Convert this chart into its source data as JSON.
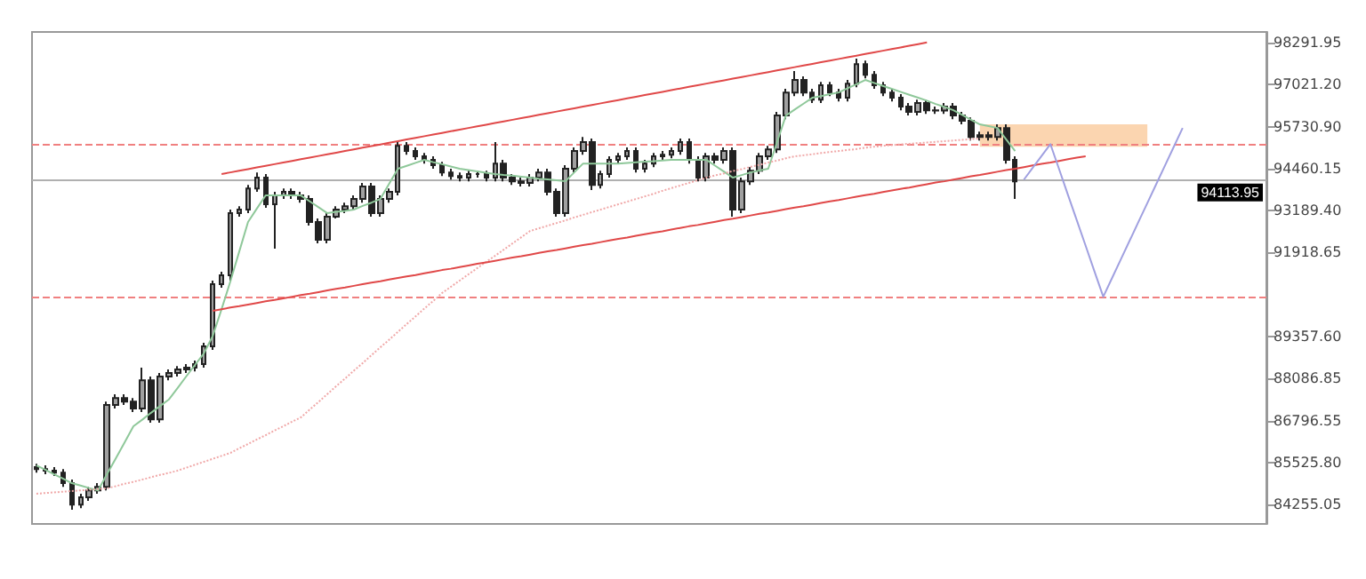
{
  "chart_data": {
    "type": "candlestick",
    "tick_labels": "y",
    "grid": false,
    "ylim": [
      83660,
      98620
    ],
    "yticks": [
      {
        "value": 98291.95,
        "label": "98291.95"
      },
      {
        "value": 97021.2,
        "label": "97021.20"
      },
      {
        "value": 95730.9,
        "label": "95730.90"
      },
      {
        "value": 94460.15,
        "label": "94460.15"
      },
      {
        "value": 93189.4,
        "label": "93189.40"
      },
      {
        "value": 91918.65,
        "label": "91918.65"
      },
      {
        "value": 89357.6,
        "label": "89357.60"
      },
      {
        "value": 88086.85,
        "label": "88086.85"
      },
      {
        "value": 86796.55,
        "label": "86796.55"
      },
      {
        "value": 85525.8,
        "label": "85525.80"
      },
      {
        "value": 84255.05,
        "label": "84255.05"
      }
    ],
    "categories": [
      null,
      null,
      null,
      null,
      null,
      null,
      null,
      null,
      null,
      null,
      null,
      null,
      null,
      null,
      null,
      null,
      null,
      null,
      null,
      null,
      null,
      null,
      null,
      null,
      null,
      null,
      null,
      null,
      null,
      null,
      null,
      null,
      null,
      null,
      null,
      null,
      null,
      null,
      null,
      null,
      null,
      null,
      null,
      null,
      null,
      null,
      null,
      null,
      null,
      null,
      null,
      null,
      null,
      null,
      null,
      null,
      null,
      null,
      null,
      null,
      null,
      null,
      null,
      null,
      null,
      null,
      null,
      null,
      null,
      null,
      null,
      null,
      null,
      null,
      null,
      null,
      null,
      null,
      null,
      null,
      null,
      null,
      null,
      null,
      null,
      null,
      null,
      null,
      null,
      null,
      null,
      null,
      null,
      null,
      null,
      null,
      null,
      null,
      null,
      null,
      null,
      null,
      null,
      null,
      null,
      null,
      null,
      null,
      null,
      null,
      null,
      null,
      null,
      null,
      null,
      null,
      null,
      null,
      null,
      null,
      null,
      null,
      null,
      null,
      null,
      null,
      null,
      null,
      null,
      null,
      null,
      null,
      null,
      null,
      null,
      null,
      null,
      null,
      null,
      null
    ],
    "color": "#222222",
    "ohlc": [
      [
        85390,
        85490,
        85220,
        85330
      ],
      [
        85330,
        85440,
        85170,
        85280
      ],
      [
        85280,
        85390,
        85120,
        85220
      ],
      [
        85220,
        85330,
        84790,
        84900
      ],
      [
        84900,
        85010,
        84090,
        84250
      ],
      [
        84250,
        84580,
        84140,
        84470
      ],
      [
        84470,
        84790,
        84360,
        84680
      ],
      [
        84680,
        84900,
        84580,
        84790
      ],
      [
        84790,
        87380,
        84680,
        87280
      ],
      [
        87280,
        87600,
        87170,
        87490
      ],
      [
        87490,
        87600,
        87280,
        87380
      ],
      [
        87380,
        87490,
        87060,
        87170
      ],
      [
        87170,
        88410,
        87060,
        88030
      ],
      [
        88030,
        88140,
        86740,
        86840
      ],
      [
        86840,
        88250,
        86740,
        88140
      ],
      [
        88140,
        88360,
        88030,
        88250
      ],
      [
        88250,
        88460,
        88140,
        88360
      ],
      [
        88360,
        88520,
        88250,
        88410
      ],
      [
        88410,
        88630,
        88300,
        88520
      ],
      [
        88520,
        89170,
        88410,
        89060
      ],
      [
        89060,
        91060,
        88950,
        90950
      ],
      [
        90950,
        91330,
        90840,
        91220
      ],
      [
        91220,
        93220,
        91060,
        93110
      ],
      [
        93110,
        93320,
        93000,
        93220
      ],
      [
        93220,
        93970,
        93110,
        93860
      ],
      [
        93860,
        94350,
        93760,
        94190
      ],
      [
        94190,
        94300,
        93270,
        93380
      ],
      [
        93380,
        93760,
        92030,
        93650
      ],
      [
        93650,
        93860,
        93540,
        93760
      ],
      [
        93760,
        93860,
        93540,
        93650
      ],
      [
        93650,
        93760,
        93430,
        93540
      ],
      [
        93540,
        93650,
        92730,
        92840
      ],
      [
        92840,
        92950,
        92190,
        92300
      ],
      [
        92300,
        93110,
        92190,
        93000
      ],
      [
        93000,
        93320,
        92950,
        93220
      ],
      [
        93220,
        93430,
        93110,
        93320
      ],
      [
        93320,
        93650,
        93220,
        93540
      ],
      [
        93540,
        94030,
        93430,
        93920
      ],
      [
        93920,
        94030,
        93000,
        93110
      ],
      [
        93110,
        93650,
        93000,
        93540
      ],
      [
        93540,
        93860,
        93430,
        93760
      ],
      [
        93760,
        95270,
        93650,
        95160
      ],
      [
        95160,
        95270,
        94890,
        95000
      ],
      [
        95000,
        95110,
        94730,
        94840
      ],
      [
        94840,
        94940,
        94620,
        94730
      ],
      [
        94730,
        94840,
        94460,
        94570
      ],
      [
        94570,
        94670,
        94240,
        94350
      ],
      [
        94350,
        94460,
        94130,
        94240
      ],
      [
        94240,
        94350,
        94080,
        94190
      ],
      [
        94190,
        94400,
        94080,
        94300
      ],
      [
        94300,
        94400,
        94190,
        94300
      ],
      [
        94300,
        94400,
        94080,
        94190
      ],
      [
        94190,
        95270,
        94080,
        94620
      ],
      [
        94620,
        94730,
        94080,
        94190
      ],
      [
        94190,
        94300,
        93970,
        94080
      ],
      [
        94080,
        94190,
        93920,
        94030
      ],
      [
        94030,
        94300,
        93920,
        94190
      ],
      [
        94190,
        94460,
        94080,
        94350
      ],
      [
        94350,
        94460,
        93650,
        93760
      ],
      [
        93760,
        93860,
        93000,
        93110
      ],
      [
        93110,
        94570,
        93000,
        94460
      ],
      [
        94460,
        95110,
        94350,
        95000
      ],
      [
        95000,
        95430,
        94890,
        95270
      ],
      [
        95270,
        95380,
        93810,
        93970
      ],
      [
        93970,
        94400,
        93860,
        94300
      ],
      [
        94300,
        94840,
        94190,
        94730
      ],
      [
        94730,
        94940,
        94620,
        94840
      ],
      [
        94840,
        95110,
        94730,
        95000
      ],
      [
        95000,
        95110,
        94350,
        94460
      ],
      [
        94460,
        94730,
        94350,
        94620
      ],
      [
        94620,
        94940,
        94510,
        94840
      ],
      [
        94840,
        95000,
        94730,
        94890
      ],
      [
        94890,
        95110,
        94780,
        95000
      ],
      [
        95000,
        95380,
        94890,
        95270
      ],
      [
        95270,
        95380,
        94620,
        94730
      ],
      [
        94730,
        94840,
        94080,
        94190
      ],
      [
        94190,
        94940,
        94080,
        94840
      ],
      [
        94840,
        94940,
        94620,
        94730
      ],
      [
        94730,
        95110,
        94620,
        95000
      ],
      [
        95000,
        95110,
        93000,
        93220
      ],
      [
        93220,
        94190,
        93110,
        94080
      ],
      [
        94080,
        94510,
        93970,
        94400
      ],
      [
        94400,
        94940,
        94300,
        94840
      ],
      [
        94840,
        95160,
        94730,
        95050
      ],
      [
        95050,
        96190,
        94940,
        96080
      ],
      [
        96080,
        96890,
        95970,
        96780
      ],
      [
        96780,
        97430,
        96670,
        97160
      ],
      [
        97160,
        97270,
        96670,
        96780
      ],
      [
        96780,
        96890,
        96460,
        96560
      ],
      [
        96560,
        97100,
        96460,
        97000
      ],
      [
        97000,
        97100,
        96670,
        96780
      ],
      [
        96780,
        96890,
        96510,
        96620
      ],
      [
        96620,
        97160,
        96510,
        97050
      ],
      [
        97050,
        97810,
        96940,
        97640
      ],
      [
        97640,
        97750,
        97210,
        97320
      ],
      [
        97320,
        97430,
        96890,
        97000
      ],
      [
        97000,
        97100,
        96670,
        96780
      ],
      [
        96780,
        96890,
        96510,
        96620
      ],
      [
        96620,
        96730,
        96240,
        96350
      ],
      [
        96350,
        96460,
        96080,
        96190
      ],
      [
        96190,
        96560,
        96080,
        96460
      ],
      [
        96460,
        96560,
        96130,
        96240
      ],
      [
        96240,
        96350,
        96130,
        96230
      ],
      [
        96230,
        96460,
        96130,
        96350
      ],
      [
        96350,
        96460,
        95970,
        96080
      ],
      [
        96080,
        96190,
        95810,
        95920
      ],
      [
        95920,
        96020,
        95320,
        95430
      ],
      [
        95430,
        95590,
        95320,
        95480
      ],
      [
        95480,
        95590,
        95320,
        95430
      ],
      [
        95430,
        95810,
        95320,
        95700
      ],
      [
        95700,
        95810,
        94620,
        94730
      ],
      [
        94730,
        94840,
        93540,
        94080
      ],
      null,
      null,
      null,
      null,
      null,
      null,
      null,
      null,
      null,
      null,
      null,
      null,
      null,
      null,
      null,
      null,
      null,
      null,
      null,
      null,
      null,
      null,
      null,
      null,
      null,
      null,
      null,
      null
    ],
    "series": [
      {
        "type": "line",
        "color": "#fbd5b0",
        "values": [
          null,
          null,
          null,
          null,
          null,
          null,
          null,
          null,
          null,
          null,
          null,
          null,
          null,
          null,
          null,
          null,
          null,
          null,
          null,
          null,
          null,
          null,
          null,
          null,
          null,
          null,
          null,
          null,
          null,
          null,
          null,
          null,
          null,
          null,
          null,
          null,
          null,
          null,
          null,
          null,
          null,
          null,
          null,
          null,
          null,
          null,
          null,
          null,
          null,
          null,
          null,
          null,
          null,
          null,
          null,
          null,
          null,
          null,
          null,
          null,
          null,
          null,
          null,
          null,
          null,
          null,
          null,
          null,
          null,
          null,
          null,
          null,
          null,
          null,
          null,
          null,
          null,
          null,
          null,
          null,
          null,
          null,
          null,
          null,
          null,
          null,
          null,
          null,
          null,
          null,
          null,
          null,
          null,
          null,
          null,
          null,
          null,
          null,
          null,
          null,
          null,
          null,
          null,
          null,
          null,
          null,
          null,
          95160,
          95160,
          95160,
          95160,
          95160,
          95160,
          95160,
          95160,
          95160,
          95160,
          95160,
          95160,
          95160,
          95160,
          95160,
          95160,
          95160,
          95160,
          95160,
          95160,
          null,
          null,
          null,
          null,
          null,
          null,
          null,
          null,
          null,
          null,
          null,
          null,
          null
        ],
        "lower": [
          null,
          null,
          null,
          null,
          null,
          null,
          null,
          null,
          null,
          null,
          null,
          null,
          null,
          null,
          null,
          null,
          null,
          null,
          null,
          null,
          null,
          null,
          null,
          null,
          null,
          null,
          null,
          null,
          null,
          null,
          null,
          null,
          null,
          null,
          null,
          null,
          null,
          null,
          null,
          null,
          null,
          null,
          null,
          null,
          null,
          null,
          null,
          null,
          null,
          null,
          null,
          null,
          null,
          null,
          null,
          null,
          null,
          null,
          null,
          null,
          null,
          null,
          null,
          null,
          null,
          null,
          null,
          null,
          null,
          null,
          null,
          null,
          null,
          null,
          null,
          null,
          null,
          null,
          null,
          null,
          null,
          null,
          null,
          null,
          null,
          null,
          null,
          null,
          null,
          null,
          null,
          null,
          null,
          null,
          null,
          null,
          null,
          null,
          null,
          null,
          null,
          null,
          null,
          null,
          null,
          null,
          null,
          95160,
          95160,
          95160,
          95160,
          95160,
          95160,
          95160,
          95160,
          95160,
          95160,
          95160,
          95160,
          95160,
          95160,
          95160,
          95160,
          95160,
          95160,
          95160,
          95160,
          null,
          null,
          null,
          null,
          null,
          null,
          null,
          null,
          null,
          null,
          null,
          null,
          null
        ],
        "upper": [
          null,
          null,
          null,
          null,
          null,
          null,
          null,
          null,
          null,
          null,
          null,
          null,
          null,
          null,
          null,
          null,
          null,
          null,
          null,
          null,
          null,
          null,
          null,
          null,
          null,
          null,
          null,
          null,
          null,
          null,
          null,
          null,
          null,
          null,
          null,
          null,
          null,
          null,
          null,
          null,
          null,
          null,
          null,
          null,
          null,
          null,
          null,
          null,
          null,
          null,
          null,
          null,
          null,
          null,
          null,
          null,
          null,
          null,
          null,
          null,
          null,
          null,
          null,
          null,
          null,
          null,
          null,
          null,
          null,
          null,
          null,
          null,
          null,
          null,
          null,
          null,
          null,
          null,
          null,
          null,
          null,
          null,
          null,
          null,
          null,
          null,
          null,
          null,
          null,
          null,
          null,
          null,
          null,
          null,
          null,
          null,
          null,
          null,
          null,
          null,
          null,
          null,
          null,
          null,
          null,
          null,
          null,
          95810,
          95810,
          95810,
          95810,
          95810,
          95810,
          95810,
          95810,
          95810,
          95810,
          95810,
          95810,
          95810,
          95810,
          95810,
          95810,
          95810,
          95810,
          95810,
          95810,
          null,
          null,
          null,
          null,
          null,
          null,
          null,
          null,
          null,
          null,
          null,
          null,
          null
        ]
      },
      {
        "type": "line",
        "color": "#8fc89a",
        "line_style": "solid",
        "values": [
          85440,
          85310,
          85170,
          85040,
          84900,
          84830,
          84750,
          84680,
          85170,
          85650,
          86140,
          86630,
          86830,
          87040,
          87240,
          87440,
          87790,
          88150,
          88500,
          88850,
          89380,
          90190,
          91040,
          91940,
          92840,
          93250,
          93650,
          93650,
          93650,
          93650,
          93650,
          93470,
          93290,
          93110,
          93150,
          93180,
          93220,
          93330,
          93430,
          93540,
          94000,
          94460,
          94550,
          94640,
          94730,
          94660,
          94600,
          94530,
          94460,
          94420,
          94380,
          94340,
          94300,
          94270,
          94250,
          94220,
          94190,
          94160,
          94140,
          94110,
          94080,
          94350,
          94620,
          94620,
          94620,
          94620,
          94620,
          94640,
          94660,
          94680,
          94690,
          94710,
          94730,
          94730,
          94730,
          94730,
          94730,
          94550,
          94370,
          94190,
          94270,
          94350,
          94410,
          94460,
          95270,
          96080,
          96260,
          96440,
          96620,
          96670,
          96730,
          96780,
          96910,
          97030,
          97160,
          97070,
          96980,
          96890,
          96800,
          96710,
          96620,
          96530,
          96430,
          96340,
          96240,
          96100,
          95950,
          95810,
          95760,
          95700,
          95350,
          95000,
          null,
          null,
          null,
          null,
          null,
          null,
          null,
          null,
          null,
          null,
          null,
          null,
          null,
          null,
          null,
          null,
          null,
          null,
          null,
          null,
          null,
          null,
          null,
          null,
          null,
          null,
          null,
          null
        ]
      },
      {
        "type": "line",
        "color": "#f0a8a8",
        "line_style": "dotted",
        "values": [
          84580,
          84600,
          84620,
          84640,
          84660,
          84680,
          84700,
          84720,
          84740,
          84810,
          84880,
          84940,
          85010,
          85080,
          85150,
          85210,
          85280,
          85370,
          85460,
          85550,
          85640,
          85730,
          85820,
          85960,
          86090,
          86230,
          86360,
          86500,
          86630,
          86770,
          86900,
          87140,
          87370,
          87610,
          87850,
          88080,
          88320,
          88550,
          88790,
          89030,
          89260,
          89500,
          89740,
          89970,
          90210,
          90440,
          90680,
          90870,
          91060,
          91250,
          91440,
          91630,
          91810,
          92000,
          92190,
          92380,
          92570,
          92650,
          92730,
          92810,
          92890,
          92980,
          93060,
          93140,
          93220,
          93300,
          93380,
          93460,
          93540,
          93620,
          93700,
          93790,
          93870,
          93950,
          94030,
          94110,
          94190,
          94260,
          94320,
          94390,
          94450,
          94520,
          94580,
          94650,
          94710,
          94780,
          94840,
          94870,
          94900,
          94940,
          94970,
          95000,
          95030,
          95060,
          95100,
          95130,
          95160,
          95180,
          95200,
          95220,
          95240,
          95260,
          95280,
          95300,
          95320,
          95340,
          95360,
          95380,
          null,
          null,
          null,
          null,
          null,
          null,
          null,
          null,
          null,
          null,
          null,
          null,
          null,
          null,
          null,
          null,
          null,
          null,
          null,
          null,
          null,
          null,
          null,
          null,
          null,
          null,
          null,
          null,
          null,
          null,
          null,
          null
        ]
      },
      {
        "type": "line",
        "color": "#e04848",
        "line_style": "solid",
        "values": [
          null,
          null,
          null,
          null,
          null,
          null,
          null,
          null,
          null,
          null,
          null,
          null,
          null,
          null,
          null,
          null,
          null,
          null,
          null,
          null,
          null,
          94300,
          94350,
          94400,
          94450,
          94500,
          94550,
          94600,
          94650,
          94700,
          94750,
          94800,
          94850,
          94900,
          94950,
          95000,
          95050,
          95100,
          95150,
          95200,
          95250,
          95300,
          95350,
          95400,
          95450,
          95500,
          95550,
          95600,
          95650,
          95700,
          95750,
          95800,
          95850,
          95900,
          95950,
          96000,
          96050,
          96100,
          96150,
          96200,
          96250,
          96300,
          96350,
          96400,
          96450,
          96500,
          96550,
          96600,
          96650,
          96700,
          96750,
          96800,
          96850,
          96900,
          96950,
          97000,
          97050,
          97100,
          97150,
          97200,
          97250,
          97300,
          97350,
          97400,
          97450,
          97500,
          97550,
          97600,
          97650,
          97700,
          97750,
          97800,
          97850,
          97900,
          97950,
          98000,
          98050,
          98100,
          98150,
          98200,
          98250,
          98300,
          null,
          null,
          null,
          null,
          null,
          null,
          null,
          null,
          null,
          null,
          null,
          null,
          null,
          null,
          null,
          null,
          null,
          null,
          null,
          null,
          null,
          null,
          null,
          null,
          null,
          null,
          null,
          null,
          null,
          null,
          null,
          null,
          null,
          null,
          null,
          null,
          null,
          null
        ]
      },
      {
        "type": "line",
        "color": "#e04848",
        "line_style": "solid",
        "values": [
          null,
          null,
          null,
          null,
          null,
          null,
          null,
          null,
          null,
          null,
          null,
          null,
          null,
          null,
          null,
          null,
          null,
          null,
          null,
          null,
          90140,
          90190,
          90240,
          90280,
          90330,
          90380,
          90430,
          90470,
          90520,
          90570,
          90620,
          90660,
          90710,
          90760,
          90810,
          90850,
          90900,
          90950,
          91000,
          91040,
          91090,
          91140,
          91190,
          91230,
          91280,
          91330,
          91380,
          91420,
          91470,
          91520,
          91570,
          91610,
          91660,
          91710,
          91760,
          91800,
          91850,
          91900,
          91950,
          91990,
          92040,
          92090,
          92140,
          92180,
          92230,
          92280,
          92330,
          92370,
          92420,
          92470,
          92520,
          92560,
          92610,
          92660,
          92710,
          92750,
          92800,
          92850,
          92900,
          92940,
          92990,
          93040,
          93090,
          93130,
          93180,
          93230,
          93280,
          93320,
          93370,
          93420,
          93470,
          93510,
          93560,
          93610,
          93660,
          93700,
          93750,
          93800,
          93850,
          93890,
          93940,
          93990,
          94040,
          94080,
          94130,
          94180,
          94230,
          94270,
          94320,
          94370,
          94420,
          94460,
          94510,
          94560,
          94610,
          94650,
          94700,
          94750,
          94800,
          94840,
          null,
          null,
          null,
          null,
          null,
          null,
          null,
          null,
          null,
          null,
          null,
          null,
          null,
          null,
          null,
          null,
          null,
          null,
          null,
          null
        ]
      },
      {
        "type": "line",
        "color": "#a0a0e0",
        "line_style": "solid",
        "values": [
          null,
          null,
          null,
          null,
          null,
          null,
          null,
          null,
          null,
          null,
          null,
          null,
          null,
          null,
          null,
          null,
          null,
          null,
          null,
          null,
          null,
          null,
          null,
          null,
          null,
          null,
          null,
          null,
          null,
          null,
          null,
          null,
          null,
          null,
          null,
          null,
          null,
          null,
          null,
          null,
          null,
          null,
          null,
          null,
          null,
          null,
          null,
          null,
          null,
          null,
          null,
          null,
          null,
          null,
          null,
          null,
          null,
          null,
          null,
          null,
          null,
          null,
          null,
          null,
          null,
          null,
          null,
          null,
          null,
          null,
          null,
          null,
          null,
          null,
          null,
          null,
          null,
          null,
          null,
          null,
          null,
          null,
          null,
          null,
          null,
          null,
          null,
          null,
          null,
          null,
          null,
          null,
          null,
          null,
          null,
          null,
          null,
          null,
          null,
          null,
          null,
          null,
          null,
          null,
          null,
          null,
          null,
          null,
          null,
          null,
          null,
          null,
          94130,
          94490,
          94850,
          95210,
          94440,
          93660,
          92890,
          92120,
          91340,
          90570,
          91140,
          91710,
          92280,
          92850,
          93420,
          93990,
          94560,
          95130,
          95700,
          null,
          null,
          null,
          null,
          null,
          null,
          null,
          null,
          null
        ]
      }
    ],
    "ref_lines": [
      {
        "axis": "y",
        "value": 95210,
        "color": "#f08080",
        "line_style": "dashed"
      },
      {
        "axis": "y",
        "value": 94113.95,
        "label": "94113.95",
        "color": "#b0b0b0",
        "line_style": "solid"
      },
      {
        "axis": "y",
        "value": 90570,
        "color": "#f08080",
        "line_style": "dashed"
      }
    ]
  }
}
